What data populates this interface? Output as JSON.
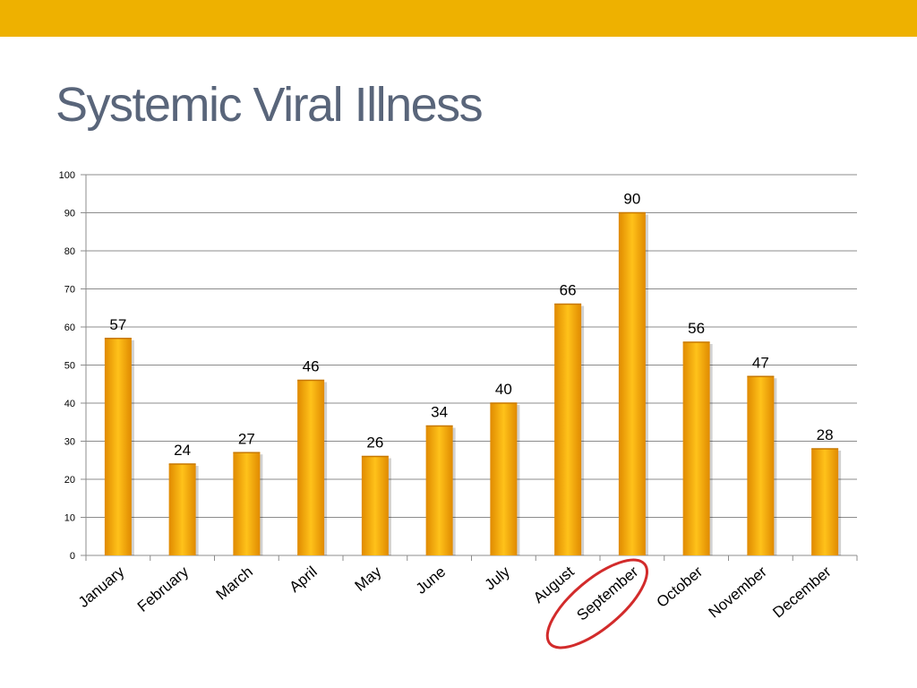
{
  "slide": {
    "title": "Systemic Viral Illness",
    "accent_color": "#EEB100",
    "title_color": "#59657A"
  },
  "chart_data": {
    "type": "bar",
    "title": "",
    "xlabel": "",
    "ylabel": "",
    "categories": [
      "January",
      "February",
      "March",
      "April",
      "May",
      "June",
      "July",
      "August",
      "September",
      "October",
      "November",
      "December"
    ],
    "values": [
      57,
      24,
      27,
      46,
      26,
      34,
      40,
      66,
      90,
      56,
      47,
      28
    ],
    "ylim": [
      0,
      100
    ],
    "yticks": [
      0,
      10,
      20,
      30,
      40,
      50,
      60,
      70,
      80,
      90,
      100
    ],
    "grid": true,
    "legend": "none",
    "data_labels": true,
    "bar_color": "#F5A800",
    "highlight": {
      "category": "September",
      "shape": "ellipse",
      "color": "#D22B2B"
    }
  }
}
